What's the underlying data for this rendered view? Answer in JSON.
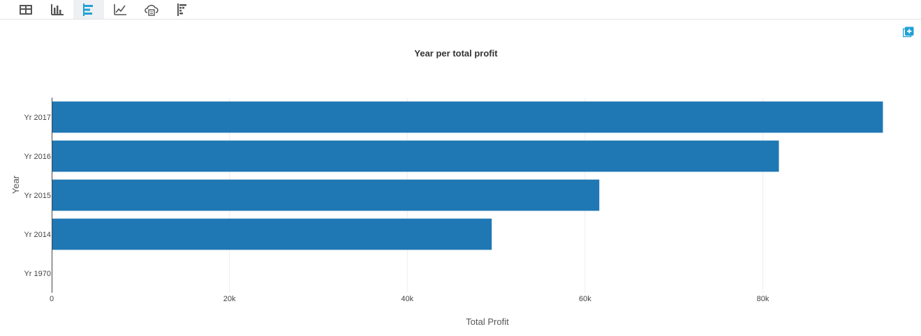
{
  "toolbar": {
    "buttons": [
      {
        "icon": "table-icon",
        "active": false
      },
      {
        "icon": "column-chart-icon",
        "active": false
      },
      {
        "icon": "bar-chart-icon",
        "active": true
      },
      {
        "icon": "line-chart-icon",
        "active": false
      },
      {
        "icon": "cloud-export-icon",
        "active": false
      },
      {
        "icon": "pivot-chart-icon",
        "active": false
      }
    ]
  },
  "colors": {
    "accent": "#1fa1d6",
    "bar": "#1f77b4",
    "icon": "#555555",
    "add_button": "#1fa1d6"
  },
  "chart_data": {
    "type": "bar",
    "orientation": "horizontal",
    "title": "Year per total profit",
    "xlabel": "Total Profit",
    "ylabel": "Year",
    "categories": [
      "Yr 1970",
      "Yr 2014",
      "Yr 2015",
      "Yr 2016",
      "Yr 2017"
    ],
    "values": [
      0,
      49500,
      61600,
      81800,
      93500
    ],
    "xlim": [
      0,
      97000
    ],
    "xticks": [
      0,
      20000,
      40000,
      60000,
      80000
    ],
    "xtick_labels": [
      "0",
      "20k",
      "40k",
      "60k",
      "80k"
    ],
    "grid": true,
    "legend": "none"
  }
}
